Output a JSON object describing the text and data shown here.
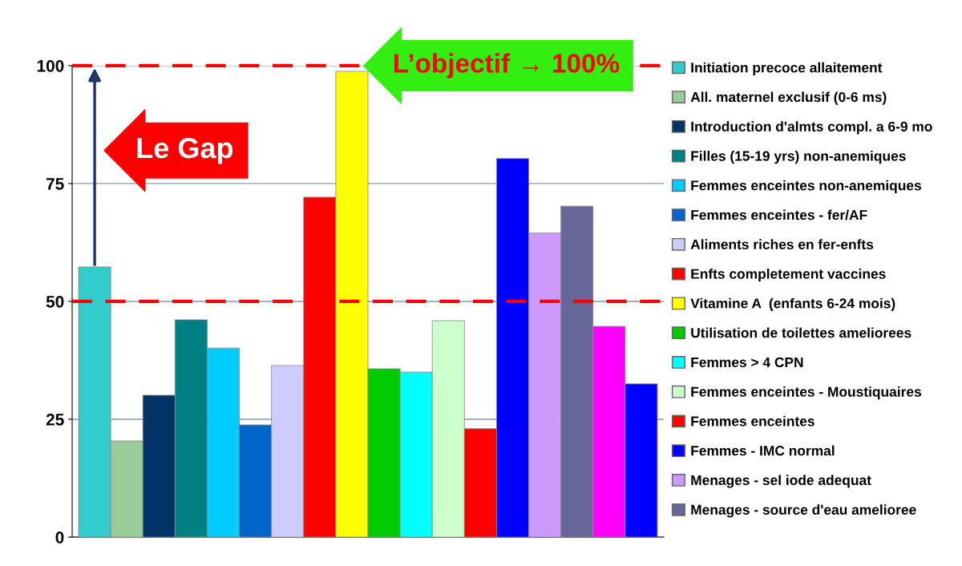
{
  "chart_data": {
    "type": "bar",
    "categories": [
      null
    ],
    "series": [
      {
        "name": "Initiation precoce allaitement",
        "color": "#33cccc",
        "values": [
          57.3
        ]
      },
      {
        "name": "All. maternel exclusif (0-6 ms)",
        "color": "#99cc99",
        "values": [
          20.4
        ]
      },
      {
        "name": "Introduction d'almts compl. a 6-9 mo",
        "color": "#003366",
        "values": [
          30.1
        ]
      },
      {
        "name": "Filles (15-19 yrs) non-anemiques",
        "color": "#008080",
        "values": [
          46.1
        ]
      },
      {
        "name": "Femmes enceintes non-anemiques",
        "color": "#00ccff",
        "values": [
          40.1
        ]
      },
      {
        "name": "Femmes enceintes - fer/AF",
        "color": "#0066cc",
        "values": [
          23.8
        ]
      },
      {
        "name": "Aliments riches en fer-enfts",
        "color": "#ccccff",
        "values": [
          36.4
        ]
      },
      {
        "name": "Enfts completement vaccines",
        "color": "#ff0000",
        "values": [
          72.1
        ]
      },
      {
        "name": "Vitamine A  (enfants 6-24 mois)",
        "color": "#ffff00",
        "values": [
          98.8
        ]
      },
      {
        "name": "Utilisation de toilettes ameliorees",
        "color": "#00cc00",
        "values": [
          35.7
        ]
      },
      {
        "name": "Femmes > 4 CPN",
        "color": "#00ffff",
        "values": [
          35.0
        ]
      },
      {
        "name": "Femmes enceintes - Moustiquaires",
        "color": "#ccffcc",
        "values": [
          45.9
        ]
      },
      {
        "name": "Femmes enceintes",
        "color": "#ff0000",
        "values": [
          23.0
        ]
      },
      {
        "name": "Femmes - IMC normal",
        "color": "#0000ff",
        "values": [
          80.3
        ]
      },
      {
        "name": "Menages - sel iode adequat",
        "color": "#cc99ff",
        "values": [
          64.5
        ]
      },
      {
        "name": "Menages - source d'eau amelioree",
        "color": "#666699",
        "values": [
          70.2
        ]
      },
      {
        "color": "#ff00ff",
        "values": [
          44.7
        ]
      },
      {
        "color": "#0000ff",
        "values": [
          32.5
        ]
      }
    ],
    "ylim": [
      0,
      100
    ],
    "yticks": [
      0,
      25,
      50,
      75,
      100
    ],
    "grid": "y",
    "legend": "right",
    "ref_lines": [
      {
        "axis": "y",
        "value": 100,
        "color": "#ff0000",
        "line_style": "dashed"
      },
      {
        "axis": "y",
        "value": 50,
        "color": "#ff0000",
        "line_style": "dashed"
      }
    ],
    "annotations": [
      "Le Gap",
      "L’objectif → 100%"
    ]
  }
}
